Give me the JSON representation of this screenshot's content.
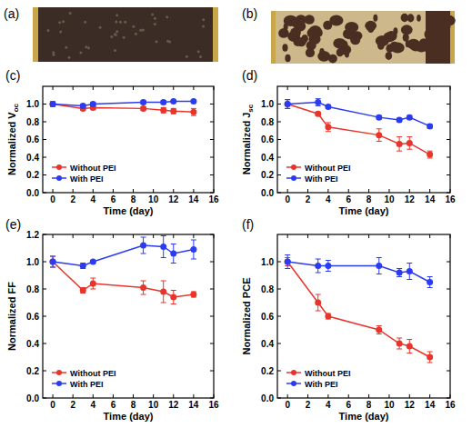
{
  "photos": [
    {
      "label": "(a)"
    },
    {
      "label": "(b)"
    }
  ],
  "chart_data": [
    {
      "type": "line",
      "label": "(c)",
      "x_label": "Time (day)",
      "y_label": "Normalized V",
      "y_label_subscript": "oc",
      "x": [
        0,
        3,
        4,
        9,
        11,
        12,
        14
      ],
      "xlim": [
        -1,
        16
      ],
      "xticks": [
        0,
        2,
        4,
        6,
        8,
        10,
        12,
        14,
        16
      ],
      "ylim": [
        0,
        1.2
      ],
      "yticks": [
        {
          "value": 0,
          "label": "0.0"
        },
        0.2,
        0.4,
        0.6,
        0.8,
        {
          "value": 1,
          "label": "1.0"
        }
      ],
      "grid": false,
      "legend": "lower left",
      "series": [
        {
          "name": "Without PEI",
          "color": "#e8352b",
          "marker": "circle",
          "line_style": "solid",
          "values": [
            1.0,
            0.95,
            0.96,
            0.95,
            0.93,
            0.92,
            0.91
          ],
          "errors": [
            0.03,
            0.02,
            0.02,
            0.02,
            0.03,
            0.03,
            0.04
          ]
        },
        {
          "name": "With PEI",
          "color": "#2b3cf0",
          "marker": "circle",
          "line_style": "solid",
          "values": [
            1.0,
            0.98,
            1.0,
            1.02,
            1.02,
            1.03,
            1.03
          ],
          "errors": [
            0.02,
            0.02,
            0.02,
            0.02,
            0.02,
            0.01,
            0.01
          ]
        }
      ]
    },
    {
      "type": "line",
      "label": "(d)",
      "x_label": "Time (day)",
      "y_label": "Normalized J",
      "y_label_subscript": "sc",
      "x": [
        0,
        3,
        4,
        9,
        11,
        12,
        14
      ],
      "xlim": [
        -1,
        16
      ],
      "xticks": [
        0,
        2,
        4,
        6,
        8,
        10,
        12,
        14,
        16
      ],
      "ylim": [
        0,
        1.2
      ],
      "yticks": [
        {
          "value": 0,
          "label": "0.0"
        },
        0.2,
        0.4,
        0.6,
        0.8,
        {
          "value": 1,
          "label": "1.0"
        }
      ],
      "grid": false,
      "legend": "lower left",
      "series": [
        {
          "name": "Without PEI",
          "color": "#e8352b",
          "marker": "circle",
          "line_style": "solid",
          "values": [
            1.0,
            0.89,
            0.74,
            0.65,
            0.55,
            0.56,
            0.43
          ],
          "errors": [
            0.05,
            0.02,
            0.05,
            0.07,
            0.08,
            0.07,
            0.04
          ]
        },
        {
          "name": "With PEI",
          "color": "#2b3cf0",
          "marker": "circle",
          "line_style": "solid",
          "values": [
            1.0,
            1.02,
            0.97,
            0.85,
            0.82,
            0.85,
            0.75
          ],
          "errors": [
            0.05,
            0.04,
            0.02,
            0.02,
            0.02,
            0.02,
            0.02
          ]
        }
      ]
    },
    {
      "type": "line",
      "label": "(e)",
      "x_label": "Time (day)",
      "y_label": "Normalized FF",
      "x": [
        0,
        3,
        4,
        9,
        11,
        12,
        14
      ],
      "xlim": [
        -1,
        16
      ],
      "xticks": [
        0,
        2,
        4,
        6,
        8,
        10,
        12,
        14,
        16
      ],
      "ylim": [
        0,
        1.2
      ],
      "yticks": [
        {
          "value": 0,
          "label": "0.0"
        },
        0.2,
        0.4,
        0.6,
        0.8,
        {
          "value": 1,
          "label": "1.0"
        },
        1.2
      ],
      "grid": false,
      "legend": "lower left",
      "series": [
        {
          "name": "Without PEI",
          "color": "#e8352b",
          "marker": "circle",
          "line_style": "solid",
          "values": [
            1.0,
            0.79,
            0.84,
            0.81,
            0.78,
            0.74,
            0.76
          ],
          "errors": [
            0.04,
            0.02,
            0.04,
            0.05,
            0.08,
            0.05,
            0.02
          ]
        },
        {
          "name": "With PEI",
          "color": "#2b3cf0",
          "marker": "circle",
          "line_style": "solid",
          "values": [
            1.0,
            0.97,
            1.0,
            1.12,
            1.11,
            1.06,
            1.09
          ],
          "errors": [
            0.04,
            0.02,
            0.01,
            0.06,
            0.08,
            0.07,
            0.07
          ]
        }
      ]
    },
    {
      "type": "line",
      "label": "(f)",
      "x_label": "Time (day)",
      "y_label": "Normalized PCE",
      "x": [
        0,
        3,
        4,
        9,
        11,
        12,
        14
      ],
      "xlim": [
        -1,
        16
      ],
      "xticks": [
        0,
        2,
        4,
        6,
        8,
        10,
        12,
        14,
        16
      ],
      "ylim": [
        0,
        1.2
      ],
      "yticks": [
        {
          "value": 0,
          "label": "0.0"
        },
        0.2,
        0.4,
        0.6,
        0.8,
        {
          "value": 1,
          "label": "1.0"
        }
      ],
      "grid": false,
      "legend": "lower left",
      "series": [
        {
          "name": "Without PEI",
          "color": "#e8352b",
          "marker": "circle",
          "line_style": "solid",
          "values": [
            1.0,
            0.7,
            0.6,
            0.5,
            0.4,
            0.38,
            0.3
          ],
          "errors": [
            0.03,
            0.06,
            0.02,
            0.03,
            0.04,
            0.05,
            0.04
          ]
        },
        {
          "name": "With PEI",
          "color": "#2b3cf0",
          "marker": "circle",
          "line_style": "solid",
          "values": [
            1.0,
            0.97,
            0.97,
            0.97,
            0.92,
            0.93,
            0.85
          ],
          "errors": [
            0.05,
            0.05,
            0.04,
            0.06,
            0.03,
            0.06,
            0.04
          ]
        }
      ]
    }
  ]
}
